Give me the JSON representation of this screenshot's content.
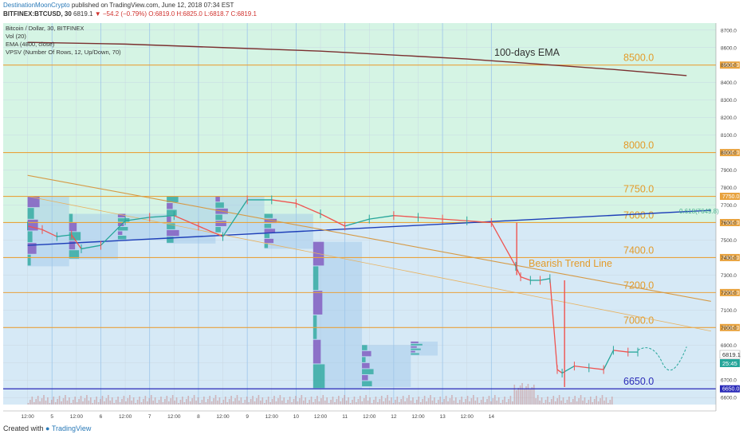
{
  "header": {
    "author": "DestinationMoonCrypto",
    "published": "published on TradingView.com, June 12, 2018 07:34 EST",
    "symbol": "BITFINEX:BTCUSD, 30",
    "last": "6819.1",
    "change": "▼ −54.2 (−0.79%)",
    "ohlc": "O:6819.0 H:6825.0 L:6818.7 C:6819.1"
  },
  "legend": {
    "title": "Bitcoin / Dollar, 30, BITFINEX",
    "vol": "Vol (20)",
    "ema": "EMA (4800, close)",
    "vpsv": "VPSV (Number Of Rows, 12, Up/Down, 70)"
  },
  "annotations": {
    "ema_label": "100-days EMA",
    "trend_label": "Bearish Trend Line",
    "fib_label": "0.618(7649.8)"
  },
  "badges": {
    "price": "6819.1",
    "timer": "25:45"
  },
  "footer": {
    "created_with": "Created with",
    "brand": "TradingView"
  },
  "colors": {
    "level_line": "#e8a23d",
    "level_text": "#e39b2a",
    "bull_zone": "#d5f4e4",
    "bear_zone": "#d6e9f6",
    "ema": "#7a2f2f",
    "rising_line": "#1e3fb8",
    "support": "#2a2ab8",
    "up_candle": "#26a69a",
    "down_candle": "#ef5350"
  },
  "chart_data": {
    "type": "line",
    "y_axis_ticks": [
      6600,
      6700,
      6800,
      6900,
      7000,
      7100,
      7200,
      7300,
      7400,
      7500,
      7600,
      7700,
      7800,
      7900,
      8000,
      8100,
      8200,
      8300,
      8400,
      8500,
      8600,
      8700
    ],
    "x_axis_ticks": [
      "12:00",
      "5",
      "12:00",
      "6",
      "12:00",
      "7",
      "12:00",
      "8",
      "12:00",
      "9",
      "12:00",
      "10",
      "12:00",
      "11",
      "12:00",
      "12",
      "12:00",
      "13",
      "12:00",
      "14"
    ],
    "levels": [
      {
        "label": "8500.0",
        "price": 8500
      },
      {
        "label": "8000.0",
        "price": 8000
      },
      {
        "label": "7750.0",
        "price": 7750
      },
      {
        "label": "7600.0",
        "price": 7600
      },
      {
        "label": "7400.0",
        "price": 7400
      },
      {
        "label": "7200.0",
        "price": 7200
      },
      {
        "label": "7000.0",
        "price": 7000
      },
      {
        "label": "6650.0",
        "price": 6650
      }
    ],
    "price_series": {
      "name": "BTCUSD",
      "x": [
        0,
        0.3,
        0.6,
        0.9,
        1.1,
        1.5,
        2.0,
        2.5,
        3.0,
        3.5,
        4.0,
        4.5,
        5.0,
        5.5,
        6.0,
        6.5,
        7.0,
        7.5,
        8.0,
        8.5,
        9.0,
        9.5,
        10.0,
        10.1,
        10.3,
        10.5,
        10.7,
        10.85,
        10.95,
        11.2,
        11.5,
        11.8,
        12.0,
        12.3,
        12.5
      ],
      "values": [
        7580,
        7560,
        7520,
        7530,
        7450,
        7470,
        7610,
        7630,
        7640,
        7580,
        7520,
        7730,
        7730,
        7710,
        7650,
        7580,
        7620,
        7640,
        7630,
        7620,
        7610,
        7600,
        7350,
        7290,
        7270,
        7270,
        7280,
        6760,
        6740,
        6780,
        6770,
        6760,
        6870,
        6860,
        6860
      ]
    },
    "ema_series": {
      "x": [
        0,
        2,
        4,
        6,
        8,
        9,
        10,
        11,
        12,
        13.5
      ],
      "values": [
        8630,
        8620,
        8600,
        8580,
        8550,
        8535,
        8515,
        8495,
        8475,
        8440
      ]
    },
    "rising_trend_line": {
      "x": [
        0,
        14
      ],
      "values": [
        7470,
        7670
      ]
    },
    "bearish_trend_line": {
      "x": [
        0,
        14
      ],
      "values": [
        7870,
        7150
      ]
    },
    "bearish_trend_line_2": {
      "x": [
        0,
        14
      ],
      "values": [
        7750,
        6980
      ]
    },
    "ylim": [
      6560,
      8740
    ],
    "xlim": [
      -0.5,
      14.1
    ],
    "grid": true
  }
}
